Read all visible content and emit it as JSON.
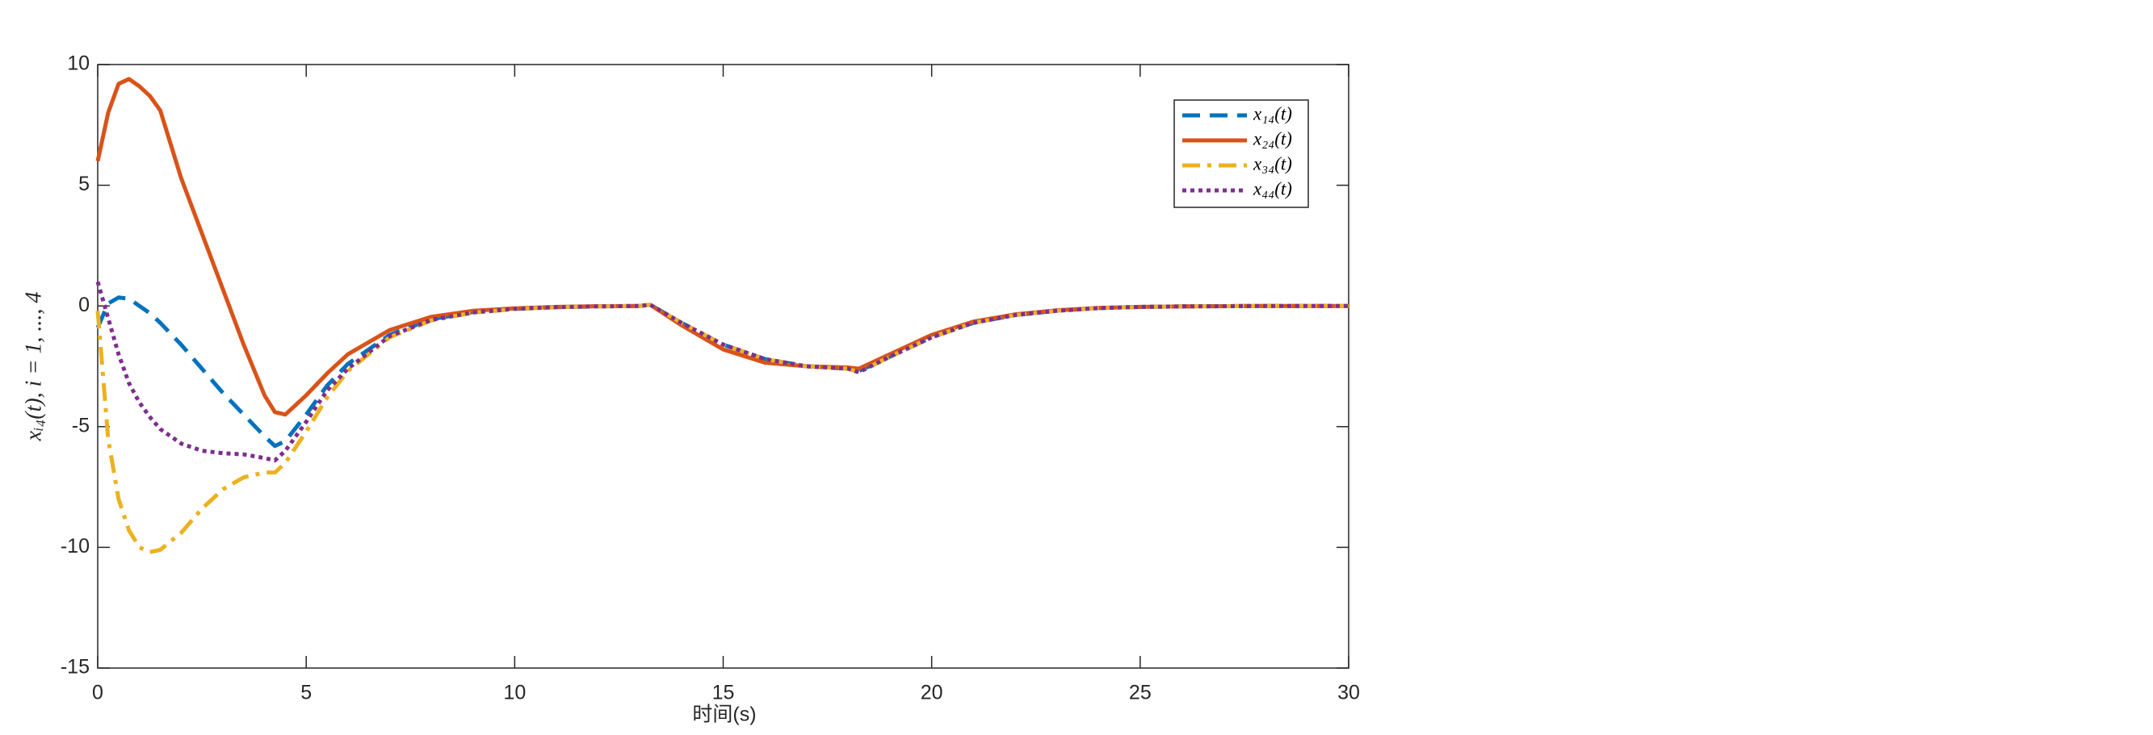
{
  "chart_data": {
    "type": "line",
    "xlabel": "时间(s)",
    "ylabel": "xᵢ₄(t), i = 1, ..., 4",
    "x": [
      0,
      0.25,
      0.5,
      0.75,
      1,
      1.25,
      1.5,
      2,
      2.5,
      3,
      3.5,
      4,
      4.25,
      4.5,
      5,
      5.5,
      6,
      7,
      8,
      9,
      10,
      11,
      12,
      13,
      13.25,
      14,
      15,
      16,
      17,
      18,
      18.25,
      19,
      20,
      21,
      22,
      23,
      24,
      25,
      26,
      28,
      30
    ],
    "series": [
      {
        "name": "x₁₄(t)",
        "color": "#0072bd",
        "dash": "dashed",
        "values": [
          -0.9,
          0.1,
          0.35,
          0.3,
          0,
          -0.3,
          -0.7,
          -1.6,
          -2.6,
          -3.6,
          -4.5,
          -5.4,
          -5.8,
          -5.6,
          -4.5,
          -3.3,
          -2.4,
          -1.2,
          -0.55,
          -0.25,
          -0.12,
          -0.05,
          -0.02,
          0,
          0.05,
          -0.7,
          -1.6,
          -2.2,
          -2.5,
          -2.6,
          -2.7,
          -2.1,
          -1.3,
          -0.7,
          -0.38,
          -0.2,
          -0.09,
          -0.04,
          -0.02,
          0,
          0
        ]
      },
      {
        "name": "x₂₄(t)",
        "color": "#d95319",
        "dash": "solid",
        "values": [
          6,
          8,
          9.2,
          9.4,
          9.1,
          8.7,
          8.1,
          5.3,
          3,
          0.7,
          -1.6,
          -3.7,
          -4.4,
          -4.5,
          -3.7,
          -2.8,
          -2,
          -1,
          -0.45,
          -0.2,
          -0.1,
          -0.04,
          -0.01,
          0,
          0.05,
          -0.8,
          -1.8,
          -2.35,
          -2.5,
          -2.55,
          -2.6,
          -2,
          -1.2,
          -0.65,
          -0.35,
          -0.18,
          -0.08,
          -0.04,
          -0.02,
          0,
          0
        ]
      },
      {
        "name": "x₃₄(t)",
        "color": "#edb120",
        "dash": "dashdot",
        "values": [
          -0.2,
          -5.5,
          -8,
          -9.3,
          -10,
          -10.2,
          -10.1,
          -9.4,
          -8.4,
          -7.6,
          -7.1,
          -6.9,
          -6.9,
          -6.5,
          -5.2,
          -3.8,
          -2.7,
          -1.3,
          -0.6,
          -0.28,
          -0.13,
          -0.05,
          -0.02,
          0,
          0.05,
          -0.7,
          -1.6,
          -2.2,
          -2.5,
          -2.6,
          -2.75,
          -2.1,
          -1.3,
          -0.7,
          -0.38,
          -0.2,
          -0.09,
          -0.04,
          -0.02,
          0,
          0
        ]
      },
      {
        "name": "x₄₄(t)",
        "color": "#7e2f8e",
        "dash": "dotted",
        "values": [
          1,
          -0.5,
          -2,
          -3.2,
          -4,
          -4.6,
          -5.1,
          -5.7,
          -6,
          -6.1,
          -6.15,
          -6.3,
          -6.4,
          -6,
          -4.8,
          -3.5,
          -2.6,
          -1.25,
          -0.58,
          -0.27,
          -0.12,
          -0.05,
          -0.02,
          0,
          0.05,
          -0.7,
          -1.6,
          -2.2,
          -2.5,
          -2.6,
          -2.75,
          -2.1,
          -1.3,
          -0.7,
          -0.38,
          -0.2,
          -0.09,
          -0.04,
          -0.02,
          0,
          0
        ]
      }
    ],
    "xlim": [
      0,
      30
    ],
    "xticks": [
      0,
      5,
      10,
      15,
      20,
      25,
      30
    ],
    "ylim": [
      -15,
      10
    ],
    "yticks": [
      -15,
      -10,
      -5,
      0,
      5,
      10
    ],
    "legend": "northeast",
    "grid": false
  }
}
